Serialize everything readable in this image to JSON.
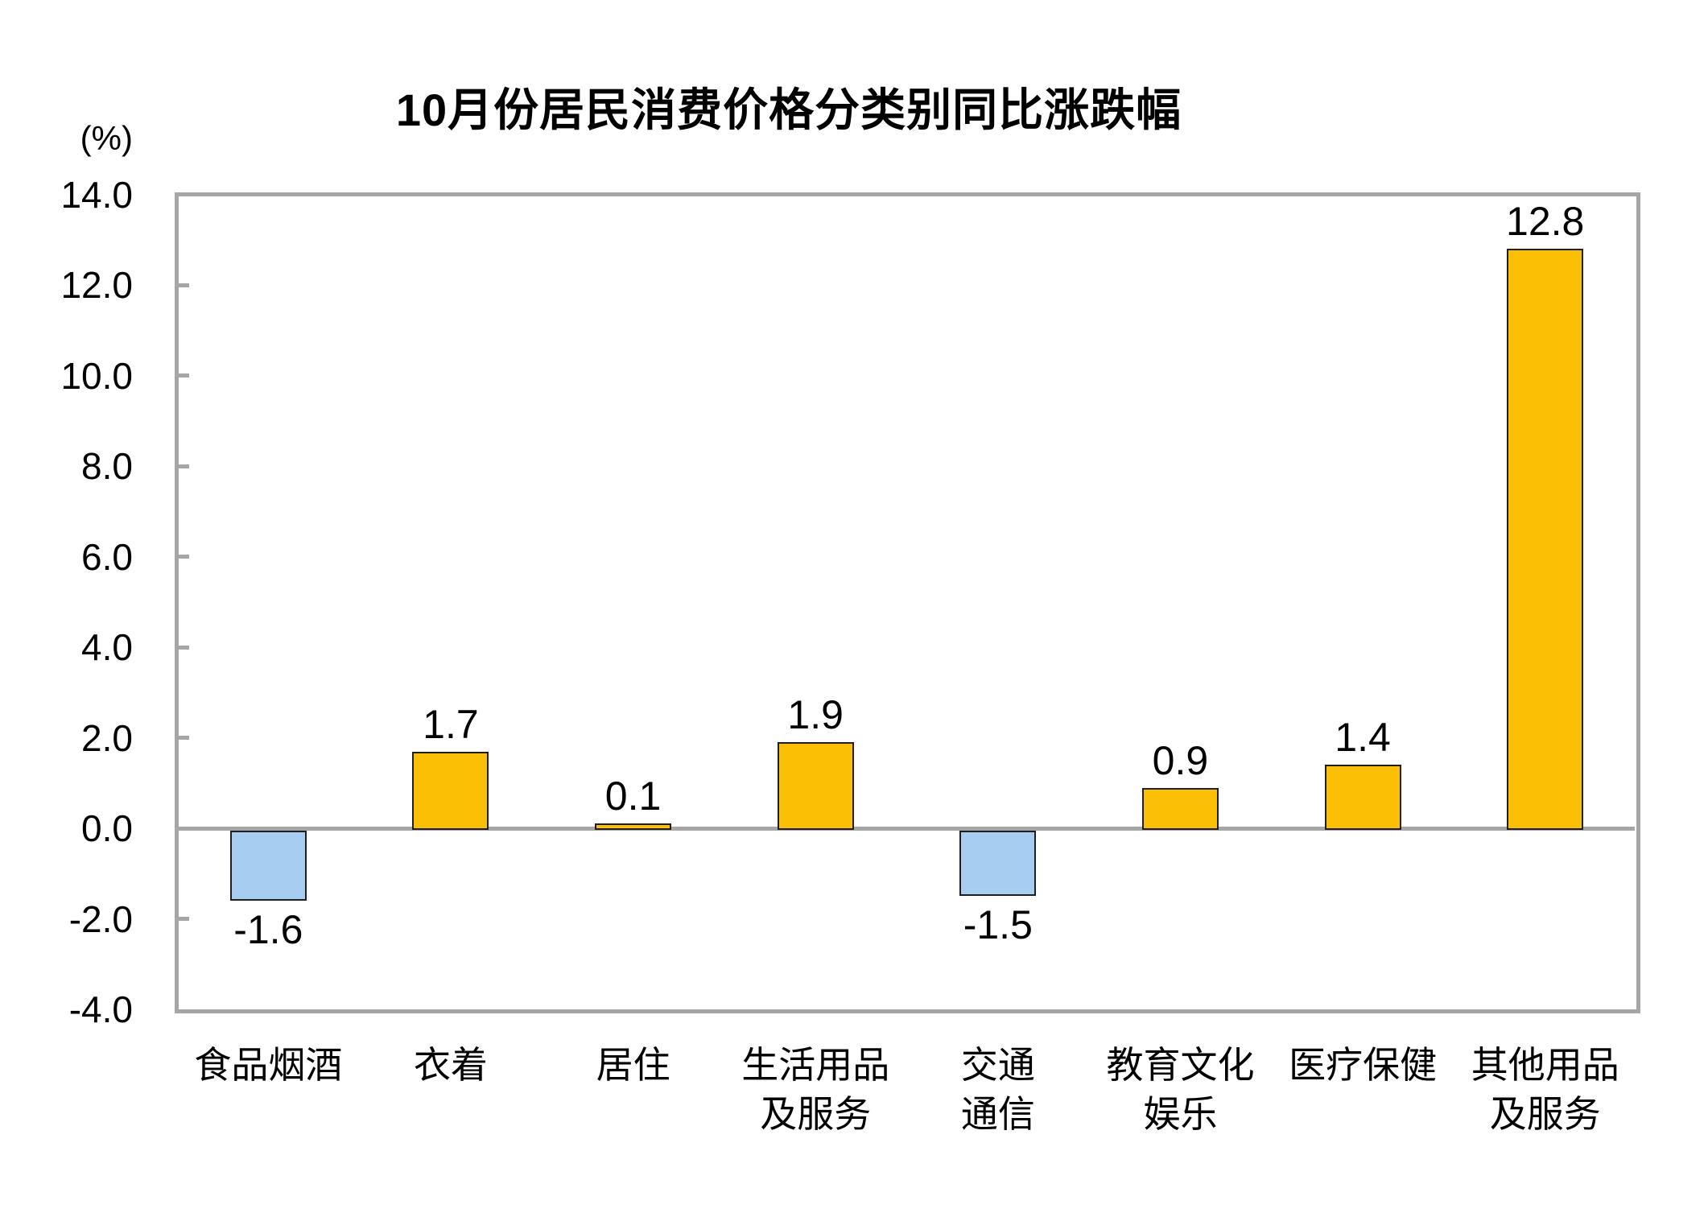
{
  "page": {
    "background": "#ffffff"
  },
  "chart_data": {
    "type": "bar",
    "title": "10月份居民消费价格分类别同比涨跌幅",
    "unit_label": "(%)",
    "categories": [
      "食品烟酒",
      "衣着",
      "居住",
      "生活用品及服务",
      "交通通信",
      "教育文化娱乐",
      "医疗保健",
      "其他用品及服务"
    ],
    "category_label_lines": [
      [
        "食品烟酒"
      ],
      [
        "衣着"
      ],
      [
        "居住"
      ],
      [
        "生活用品",
        "及服务"
      ],
      [
        "交通",
        "通信"
      ],
      [
        "教育文化",
        "娱乐"
      ],
      [
        "医疗保健"
      ],
      [
        "其他用品",
        "及服务"
      ]
    ],
    "values": [
      -1.6,
      1.7,
      0.1,
      1.9,
      -1.5,
      0.9,
      1.4,
      12.8
    ],
    "data_labels": [
      "-1.6",
      "1.7",
      "0.1",
      "1.9",
      "-1.5",
      "0.9",
      "1.4",
      "12.8"
    ],
    "ylabel": "",
    "xlabel": "",
    "ylim": [
      -4.0,
      14.0
    ],
    "ytick_step": 2.0,
    "ytick_values": [
      14,
      12,
      10,
      8,
      6,
      4,
      2,
      0,
      -2,
      -4
    ],
    "ytick_labels": [
      "14.0",
      "12.0",
      "10.0",
      "8.0",
      "6.0",
      "4.0",
      "2.0",
      "0.0",
      "-2.0",
      "-4.0"
    ],
    "grid": "zero-baseline-only",
    "legend": "none",
    "colors": {
      "bar_positive": "#fbc005",
      "bar_negative": "#a7cdf0",
      "bar_border": "#1f1f1f",
      "axis_frame": "#a6a6a6",
      "text": "#000000"
    }
  }
}
